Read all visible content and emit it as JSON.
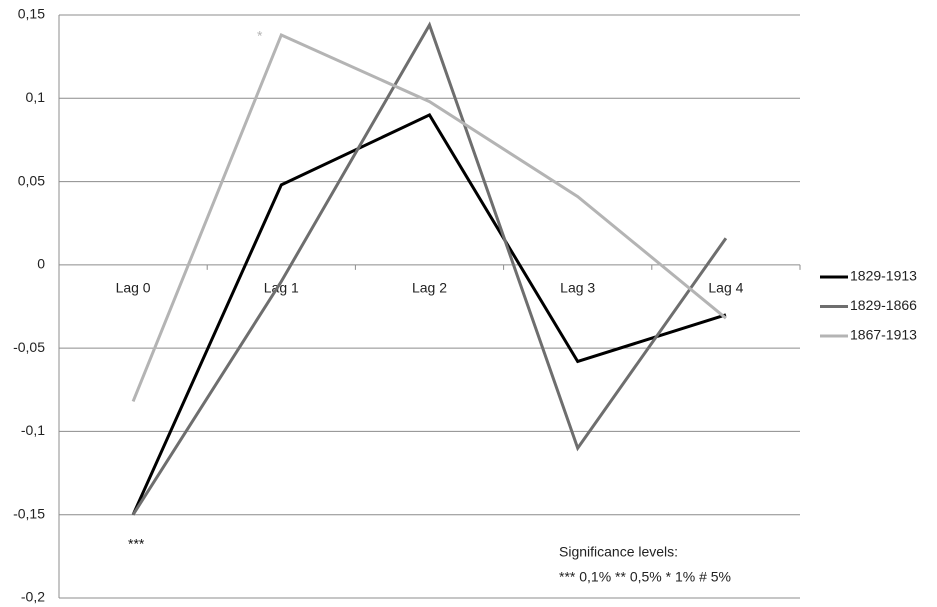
{
  "chart_data": {
    "type": "line",
    "categories": [
      "Lag 0",
      "Lag 1",
      "Lag 2",
      "Lag 3",
      "Lag 4"
    ],
    "series": [
      {
        "name": "1829-1913",
        "color": "#000000",
        "values": [
          -0.15,
          0.048,
          0.09,
          -0.058,
          -0.03
        ]
      },
      {
        "name": "1829-1866",
        "color": "#6e6e6e",
        "values": [
          -0.15,
          -0.01,
          0.144,
          -0.11,
          0.016
        ]
      },
      {
        "name": "1867-1913",
        "color": "#b4b4b4",
        "values": [
          -0.082,
          0.138,
          0.098,
          0.041,
          -0.032
        ]
      }
    ],
    "ylim": [
      -0.2,
      0.15
    ],
    "yticks": [
      {
        "value": -0.2,
        "label": "-0,2"
      },
      {
        "value": -0.15,
        "label": "-0,15"
      },
      {
        "value": -0.1,
        "label": "-0,1"
      },
      {
        "value": -0.05,
        "label": "-0,05"
      },
      0,
      {
        "value": 0.05,
        "label": "0,05"
      },
      {
        "value": 0.1,
        "label": "0,1"
      },
      {
        "value": 0.15,
        "label": "0,15"
      }
    ],
    "grid": true,
    "legend": "right",
    "annotations": [
      "***",
      "*",
      "Significance levels:",
      "***  0,1% ** 0,5% * 1% # 5%"
    ]
  }
}
